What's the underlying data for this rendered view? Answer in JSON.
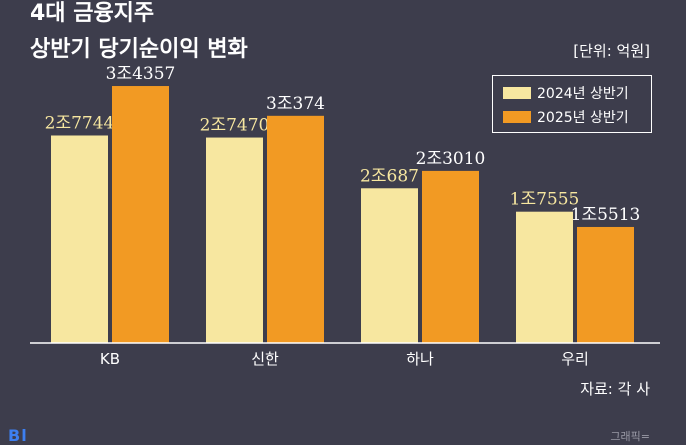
{
  "title_line1": "4대 금융지주",
  "title_line2": "상반기 당기순이익 변화",
  "unit_label": "[단위: 억원]",
  "source": "자료: 각 사",
  "footer": {
    "logo": "Bl",
    "credit": "그래픽="
  },
  "colors": {
    "background": "#3d3d4c",
    "series_2024": "#f7e7a0",
    "series_2025": "#f29a23",
    "text": "#ffffff"
  },
  "chart_data": {
    "type": "bar",
    "categories": [
      "KB",
      "신한",
      "하나",
      "우리"
    ],
    "series": [
      {
        "name": "2024년 상반기",
        "values": [
          27744,
          27470,
          20687,
          17555
        ],
        "labels": [
          "2조7744",
          "2조7470",
          "2조687",
          "1조7555"
        ]
      },
      {
        "name": "2025년 상반기",
        "values": [
          34357,
          30374,
          23010,
          15513
        ],
        "labels": [
          "3조4357",
          "3조374",
          "2조3010",
          "1조5513"
        ]
      }
    ],
    "ylim": [
      0,
      36500
    ],
    "legend": "top-right",
    "grid": false
  }
}
